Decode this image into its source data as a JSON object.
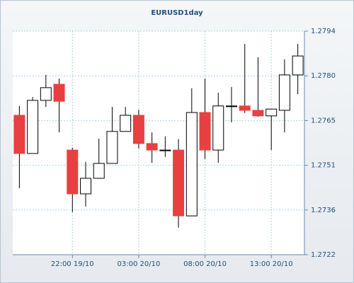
{
  "chart_data": {
    "type": "candlestick",
    "title": "EURUSD1day",
    "categories": [
      null,
      null,
      null,
      null,
      "22:00 19/10",
      null,
      null,
      null,
      null,
      "03:00 20/10",
      null,
      null,
      null,
      null,
      "08:00 20/10",
      null,
      null,
      null,
      null,
      "13:00 20/10",
      null,
      null
    ],
    "open": [
      1.27669,
      1.27546,
      1.27717,
      1.27769,
      1.27557,
      1.27416,
      1.27466,
      1.27514,
      1.27617,
      1.27669,
      1.27578,
      1.27557,
      1.27557,
      1.27345,
      1.27678,
      1.27557,
      1.27699,
      1.27699,
      1.27685,
      1.27667,
      1.27685,
      1.27799
    ],
    "high": [
      1.27699,
      1.27728,
      1.27799,
      1.27787,
      1.27564,
      1.27519,
      1.27594,
      1.27696,
      1.27696,
      1.27687,
      1.27614,
      1.27601,
      1.27592,
      1.27756,
      1.27787,
      1.27742,
      1.2776,
      1.27899,
      1.27856,
      1.27689,
      1.27849,
      1.27899
    ],
    "low": [
      1.27434,
      1.27546,
      1.27696,
      1.27614,
      1.27357,
      1.27375,
      1.27466,
      1.27514,
      1.27617,
      1.27562,
      1.27516,
      1.27535,
      1.27307,
      1.27345,
      1.27528,
      1.27516,
      1.27646,
      1.27676,
      1.27664,
      1.27557,
      1.27614,
      1.27737
    ],
    "close": [
      1.27546,
      1.27717,
      1.27758,
      1.27714,
      1.27416,
      1.27466,
      1.27514,
      1.27617,
      1.27669,
      1.27578,
      1.27557,
      1.27557,
      1.27345,
      1.27678,
      1.27557,
      1.27699,
      1.27699,
      1.27685,
      1.27667,
      1.27689,
      1.27799,
      1.2786
    ],
    "up_color": "#ffffff",
    "down_color": "#e84040",
    "ylim": [
      1.2722,
      1.2794
    ],
    "yticks": [
      1.2722,
      {
        "value": 1.27364,
        "label": "1.2736"
      },
      {
        "value": 1.27508,
        "label": "1.2751"
      },
      {
        "value": 1.27652,
        "label": "1.2765"
      },
      {
        "value": 1.27796,
        "label": "1.2780"
      },
      1.2794
    ],
    "grid": true
  }
}
